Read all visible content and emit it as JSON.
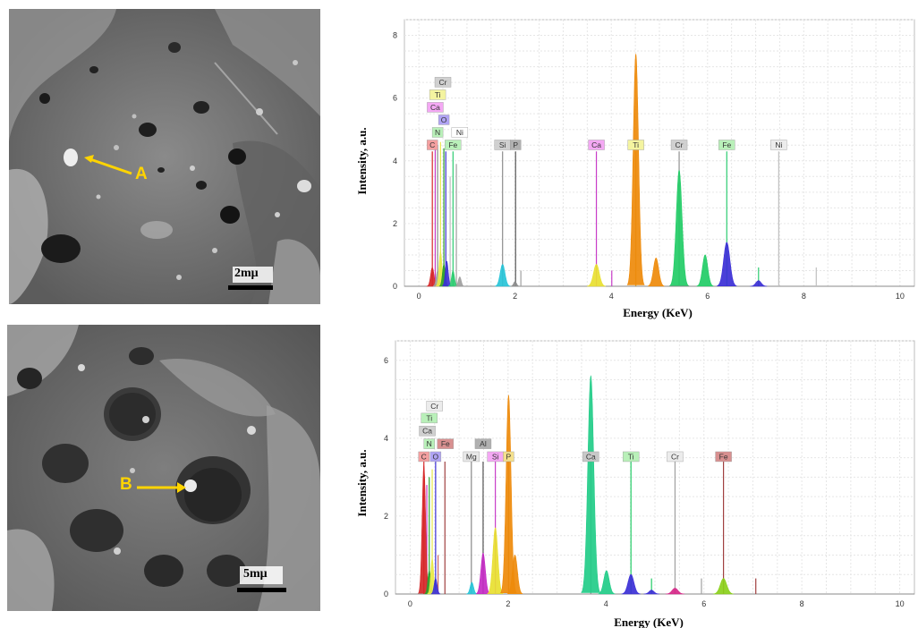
{
  "panels": [
    {
      "micrograph": {
        "scale_label": "2mμ",
        "marker_label": "A"
      },
      "chart": {
        "xlabel": "Energy (KeV)",
        "ylabel": "Intensity, a.u."
      }
    },
    {
      "micrograph": {
        "scale_label": "5mμ",
        "marker_label": "B"
      },
      "chart": {
        "xlabel": "Energy (KeV)",
        "ylabel": "Intensity, a.u."
      }
    }
  ],
  "chart_data": [
    {
      "type": "area",
      "title": "",
      "xlabel": "Energy (KeV)",
      "ylabel": "Intensity, a.u.",
      "xlim": [
        -0.3,
        10.3
      ],
      "ylim": [
        0,
        8.5
      ],
      "xticks": [
        0,
        2,
        4,
        6,
        8,
        10
      ],
      "yticks": [
        0,
        2,
        4,
        6,
        8
      ],
      "grid": true,
      "peaks": [
        {
          "x": 0.28,
          "height": 0.6,
          "width": 0.035,
          "color": "#d62728"
        },
        {
          "x": 0.39,
          "height": 0.5,
          "width": 0.03,
          "color": "#a0a0a0"
        },
        {
          "x": 0.45,
          "height": 1.1,
          "width": 0.03,
          "color": "#e8e84a"
        },
        {
          "x": 0.52,
          "height": 0.7,
          "width": 0.03,
          "color": "#2ca02c"
        },
        {
          "x": 0.58,
          "height": 0.8,
          "width": 0.03,
          "color": "#3b2fd6"
        },
        {
          "x": 0.71,
          "height": 0.5,
          "width": 0.03,
          "color": "#2ecc71"
        },
        {
          "x": 0.85,
          "height": 0.3,
          "width": 0.03,
          "color": "#9e9e9e"
        },
        {
          "x": 1.74,
          "height": 0.7,
          "width": 0.05,
          "color": "#27c4d8"
        },
        {
          "x": 2.0,
          "height": 0.15,
          "width": 0.03,
          "color": "#8c8c8c"
        },
        {
          "x": 3.69,
          "height": 0.7,
          "width": 0.06,
          "color": "#e8e030"
        },
        {
          "x": 4.51,
          "height": 7.4,
          "width": 0.055,
          "color": "#ee8a0a"
        },
        {
          "x": 4.93,
          "height": 0.9,
          "width": 0.055,
          "color": "#ee8a0a"
        },
        {
          "x": 5.41,
          "height": 3.7,
          "width": 0.06,
          "color": "#22cc66"
        },
        {
          "x": 5.95,
          "height": 1.0,
          "width": 0.055,
          "color": "#22cc66"
        },
        {
          "x": 6.4,
          "height": 1.4,
          "width": 0.065,
          "color": "#3b2fd6"
        },
        {
          "x": 7.06,
          "height": 0.18,
          "width": 0.055,
          "color": "#3b2fd6"
        }
      ],
      "lines": [
        {
          "x": 0.28,
          "height": 4.3,
          "color": "#d62728"
        },
        {
          "x": 0.34,
          "height": 4.4,
          "color": "#c83cc8"
        },
        {
          "x": 0.39,
          "height": 4.5,
          "color": "#8a8a8a"
        },
        {
          "x": 0.45,
          "height": 4.6,
          "color": "#e8e84a"
        },
        {
          "x": 0.52,
          "height": 4.4,
          "color": "#2ca02c"
        },
        {
          "x": 0.56,
          "height": 4.3,
          "color": "#3b2fd6"
        },
        {
          "x": 0.65,
          "height": 3.5,
          "color": "#bbbbbb"
        },
        {
          "x": 0.71,
          "height": 4.3,
          "color": "#2ecc71"
        },
        {
          "x": 0.78,
          "height": 3.9,
          "color": "#a0a0a0"
        },
        {
          "x": 1.74,
          "height": 4.3,
          "color": "#8c8c8c"
        },
        {
          "x": 2.01,
          "height": 4.3,
          "color": "#555555"
        },
        {
          "x": 2.12,
          "height": 0.5,
          "color": "#a0a0a0"
        },
        {
          "x": 3.69,
          "height": 4.3,
          "color": "#c83cc8"
        },
        {
          "x": 4.01,
          "height": 0.5,
          "color": "#c83cc8"
        },
        {
          "x": 4.51,
          "height": 4.3,
          "color": "#d0a030"
        },
        {
          "x": 5.41,
          "height": 4.3,
          "color": "#909090"
        },
        {
          "x": 6.4,
          "height": 4.3,
          "color": "#2ecc71"
        },
        {
          "x": 7.06,
          "height": 0.6,
          "color": "#2ecc71"
        },
        {
          "x": 7.48,
          "height": 4.3,
          "color": "#c0c0c0"
        },
        {
          "x": 8.26,
          "height": 0.6,
          "color": "#c0c0c0"
        }
      ],
      "element_labels": [
        {
          "text": "C",
          "x": 0.28,
          "y": 4.35,
          "fill": "#f4a0a0"
        },
        {
          "text": "N",
          "x": 0.39,
          "y": 4.75,
          "fill": "#b9f0b9"
        },
        {
          "text": "O",
          "x": 0.52,
          "y": 5.15,
          "fill": "#b0a4f4"
        },
        {
          "text": "Ca",
          "x": 0.34,
          "y": 5.55,
          "fill": "#f4a8f4"
        },
        {
          "text": "Ti",
          "x": 0.39,
          "y": 5.95,
          "fill": "#f4f4a0"
        },
        {
          "text": "Cr",
          "x": 0.5,
          "y": 6.35,
          "fill": "#d0d0d0"
        },
        {
          "text": "Fe",
          "x": 0.71,
          "y": 4.35,
          "fill": "#b9f0b9"
        },
        {
          "text": "Ni",
          "x": 0.85,
          "y": 4.75,
          "fill": "#ffffff"
        },
        {
          "text": "Si",
          "x": 1.74,
          "y": 4.35,
          "fill": "#d0d0d0"
        },
        {
          "text": "P",
          "x": 2.01,
          "y": 4.35,
          "fill": "#b0b0b0"
        },
        {
          "text": "Ca",
          "x": 3.69,
          "y": 4.35,
          "fill": "#f4a8f4"
        },
        {
          "text": "Ti",
          "x": 4.51,
          "y": 4.35,
          "fill": "#f4f4a0"
        },
        {
          "text": "Cr",
          "x": 5.41,
          "y": 4.35,
          "fill": "#d0d0d0"
        },
        {
          "text": "Fe",
          "x": 6.4,
          "y": 4.35,
          "fill": "#b9f0b9"
        },
        {
          "text": "Ni",
          "x": 7.48,
          "y": 4.35,
          "fill": "#ececec"
        }
      ]
    },
    {
      "type": "area",
      "title": "",
      "xlabel": "Energy (KeV)",
      "ylabel": "Intensity, a.u.",
      "xlim": [
        -0.3,
        10.3
      ],
      "ylim": [
        0,
        6.5
      ],
      "xticks": [
        0,
        2,
        4,
        6,
        8,
        10
      ],
      "yticks": [
        0,
        2,
        4,
        6
      ],
      "grid": true,
      "peaks": [
        {
          "x": 0.28,
          "height": 3.3,
          "width": 0.035,
          "color": "#d62728"
        },
        {
          "x": 0.39,
          "height": 0.6,
          "width": 0.03,
          "color": "#2ca02c"
        },
        {
          "x": 0.45,
          "height": 0.9,
          "width": 0.03,
          "color": "#e8e84a"
        },
        {
          "x": 0.52,
          "height": 0.4,
          "width": 0.03,
          "color": "#3b2fd6"
        },
        {
          "x": 1.26,
          "height": 0.3,
          "width": 0.035,
          "color": "#27c4d8"
        },
        {
          "x": 1.49,
          "height": 1.05,
          "width": 0.045,
          "color": "#c42bc4"
        },
        {
          "x": 1.74,
          "height": 1.7,
          "width": 0.05,
          "color": "#e8e030"
        },
        {
          "x": 2.01,
          "height": 5.1,
          "width": 0.05,
          "color": "#ee8a0a"
        },
        {
          "x": 2.14,
          "height": 1.0,
          "width": 0.05,
          "color": "#ee8a0a"
        },
        {
          "x": 3.69,
          "height": 5.6,
          "width": 0.06,
          "color": "#22cc88"
        },
        {
          "x": 4.01,
          "height": 0.6,
          "width": 0.055,
          "color": "#22cc88"
        },
        {
          "x": 4.51,
          "height": 0.5,
          "width": 0.06,
          "color": "#3b2fd6"
        },
        {
          "x": 4.93,
          "height": 0.1,
          "width": 0.05,
          "color": "#3b2fd6"
        },
        {
          "x": 5.41,
          "height": 0.15,
          "width": 0.06,
          "color": "#d62788"
        },
        {
          "x": 6.4,
          "height": 0.4,
          "width": 0.065,
          "color": "#8bd01b"
        }
      ],
      "lines": [
        {
          "x": 0.28,
          "height": 3.4,
          "color": "#d62728"
        },
        {
          "x": 0.34,
          "height": 2.8,
          "color": "#c83cc8"
        },
        {
          "x": 0.39,
          "height": 3.0,
          "color": "#2ca02c"
        },
        {
          "x": 0.45,
          "height": 3.2,
          "color": "#e8e84a"
        },
        {
          "x": 0.52,
          "height": 3.4,
          "color": "#3b2fd6"
        },
        {
          "x": 0.57,
          "height": 1.0,
          "color": "#cc6666"
        },
        {
          "x": 0.71,
          "height": 3.4,
          "color": "#a04040"
        },
        {
          "x": 1.25,
          "height": 3.4,
          "color": "#888888"
        },
        {
          "x": 1.49,
          "height": 3.4,
          "color": "#555555"
        },
        {
          "x": 1.74,
          "height": 3.4,
          "color": "#c83cc8"
        },
        {
          "x": 2.01,
          "height": 3.4,
          "color": "#c89030"
        },
        {
          "x": 3.69,
          "height": 3.4,
          "color": "#909090"
        },
        {
          "x": 4.51,
          "height": 3.4,
          "color": "#22cc66"
        },
        {
          "x": 4.93,
          "height": 0.4,
          "color": "#22cc66"
        },
        {
          "x": 5.41,
          "height": 3.4,
          "color": "#a0a0a0"
        },
        {
          "x": 5.95,
          "height": 0.4,
          "color": "#a0a0a0"
        },
        {
          "x": 6.4,
          "height": 3.4,
          "color": "#a04040"
        },
        {
          "x": 7.06,
          "height": 0.4,
          "color": "#a04040"
        }
      ],
      "element_labels": [
        {
          "text": "C",
          "x": 0.28,
          "y": 3.4,
          "fill": "#f4a0a0"
        },
        {
          "text": "O",
          "x": 0.52,
          "y": 3.4,
          "fill": "#b0a4f4"
        },
        {
          "text": "N",
          "x": 0.39,
          "y": 3.73,
          "fill": "#b9f0b9"
        },
        {
          "text": "Fe",
          "x": 0.72,
          "y": 3.73,
          "fill": "#d89090"
        },
        {
          "text": "Ca",
          "x": 0.35,
          "y": 4.06,
          "fill": "#d0d0d0"
        },
        {
          "text": "Ti",
          "x": 0.39,
          "y": 4.39,
          "fill": "#b9f0b9"
        },
        {
          "text": "Cr",
          "x": 0.5,
          "y": 4.7,
          "fill": "#ececec"
        },
        {
          "text": "Mg",
          "x": 1.25,
          "y": 3.4,
          "fill": "#e8e8e8"
        },
        {
          "text": "Al",
          "x": 1.49,
          "y": 3.73,
          "fill": "#b0b0b0"
        },
        {
          "text": "Si",
          "x": 1.74,
          "y": 3.4,
          "fill": "#f4a8f4"
        },
        {
          "text": "P",
          "x": 2.01,
          "y": 3.4,
          "fill": "#f4e08c"
        },
        {
          "text": "Ca",
          "x": 3.69,
          "y": 3.4,
          "fill": "#c8c8c8"
        },
        {
          "text": "Ti",
          "x": 4.51,
          "y": 3.4,
          "fill": "#b9f0b9"
        },
        {
          "text": "Cr",
          "x": 5.41,
          "y": 3.4,
          "fill": "#ececec"
        },
        {
          "text": "Fe",
          "x": 6.4,
          "y": 3.4,
          "fill": "#d89090"
        }
      ]
    }
  ]
}
